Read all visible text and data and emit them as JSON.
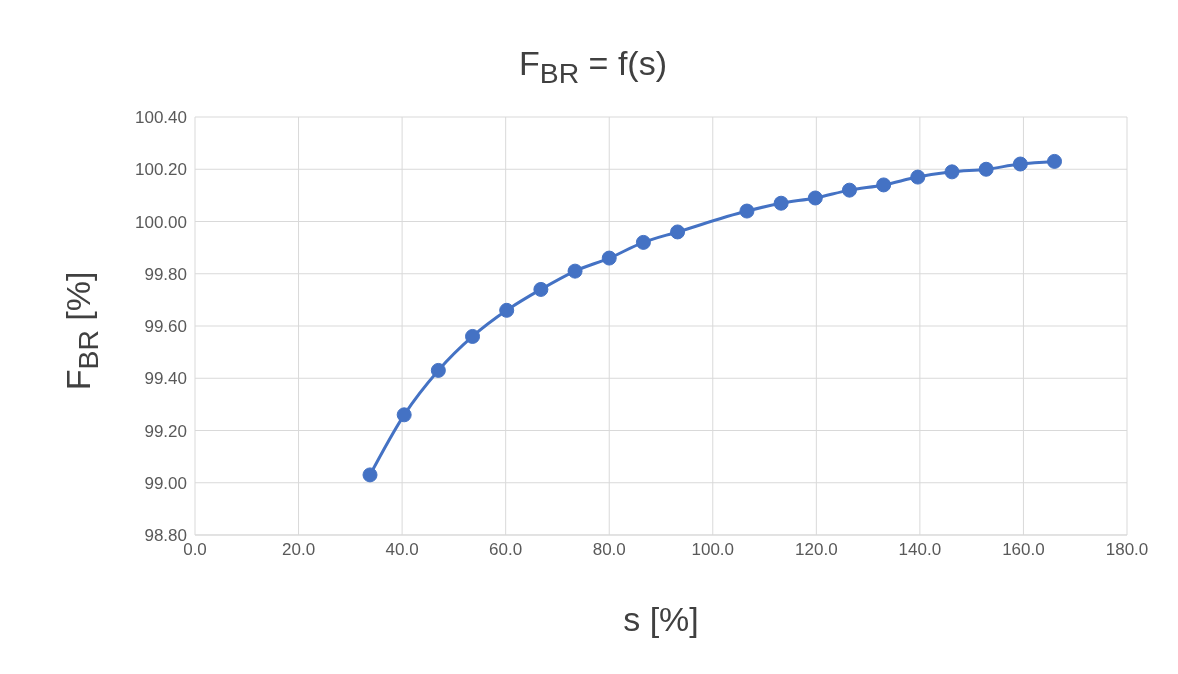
{
  "chart_data": {
    "type": "line",
    "title": "F$_{BR}$ = f(s)",
    "xlabel": "s [%]",
    "ylabel": "F$_{BR}$ [%]",
    "x": [
      33.8,
      40.4,
      47.0,
      53.6,
      60.2,
      66.8,
      73.4,
      80.0,
      86.6,
      93.2,
      106.6,
      113.2,
      119.8,
      126.4,
      133.0,
      139.6,
      146.2,
      152.8,
      159.4,
      166.0
    ],
    "series": [
      {
        "color": "#4472c4",
        "values": [
          99.03,
          99.26,
          99.43,
          99.56,
          99.66,
          99.74,
          99.81,
          99.86,
          99.92,
          99.96,
          100.04,
          100.07,
          100.09,
          100.12,
          100.14,
          100.17,
          100.19,
          100.2,
          100.22,
          100.23
        ]
      }
    ],
    "xlim": [
      0,
      180
    ],
    "xticks": [
      {
        "value": 0,
        "label": "0.0"
      },
      {
        "value": 20,
        "label": "20.0"
      },
      {
        "value": 40,
        "label": "40.0"
      },
      {
        "value": 60,
        "label": "60.0"
      },
      {
        "value": 80,
        "label": "80.0"
      },
      {
        "value": 100,
        "label": "100.0"
      },
      {
        "value": 120,
        "label": "120.0"
      },
      {
        "value": 140,
        "label": "140.0"
      },
      {
        "value": 160,
        "label": "160.0"
      },
      {
        "value": 180,
        "label": "180.0"
      }
    ],
    "ylim": [
      98.8,
      100.4
    ],
    "yticks": [
      {
        "value": 98.8,
        "label": "98.80"
      },
      {
        "value": 99.0,
        "label": "99.00"
      },
      {
        "value": 99.2,
        "label": "99.20"
      },
      {
        "value": 99.4,
        "label": "99.40"
      },
      {
        "value": 99.6,
        "label": "99.60"
      },
      {
        "value": 99.8,
        "label": "99.80"
      },
      {
        "value": 100.0,
        "label": "100.00"
      },
      {
        "value": 100.2,
        "label": "100.20"
      },
      {
        "value": 100.4,
        "label": "100.40"
      }
    ],
    "grid": true,
    "marker": "circle",
    "line_style": "solid",
    "legend": false
  }
}
